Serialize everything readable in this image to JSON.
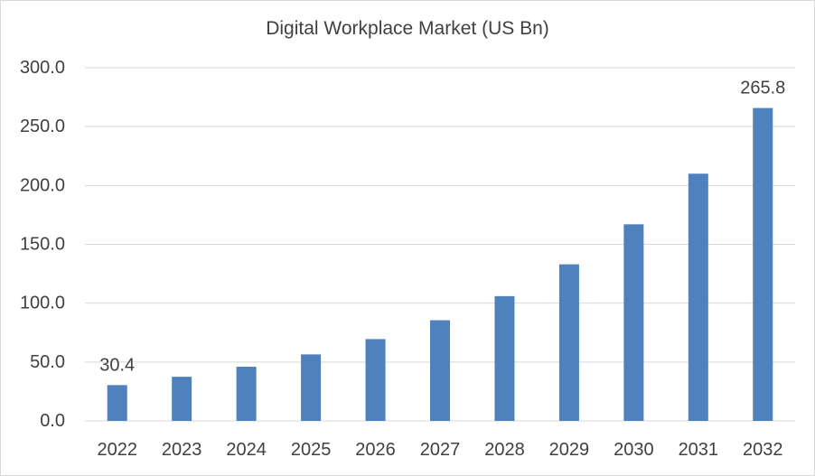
{
  "chart_data": {
    "type": "bar",
    "title": "Digital Workplace Market (US Bn)",
    "xlabel": "",
    "ylabel": "",
    "categories": [
      "2022",
      "2023",
      "2024",
      "2025",
      "2026",
      "2027",
      "2028",
      "2029",
      "2030",
      "2031",
      "2032"
    ],
    "values": [
      30.4,
      37.5,
      46.0,
      56.5,
      69.5,
      85.5,
      106.0,
      133.0,
      167.0,
      210.0,
      265.8
    ],
    "data_labels": [
      {
        "category": "2022",
        "text": "30.4"
      },
      {
        "category": "2032",
        "text": "265.8"
      }
    ],
    "ylim": [
      0,
      300
    ],
    "y_ticks": [
      0,
      50,
      100,
      150,
      200,
      250,
      300
    ],
    "y_tick_labels": [
      "0.0",
      "50.0",
      "100.0",
      "150.0",
      "200.0",
      "250.0",
      "300.0"
    ],
    "grid": true,
    "legend": "none",
    "bar_color": "#4f81bd",
    "grid_color": "#d9d9d9",
    "text_color": "#404040"
  }
}
